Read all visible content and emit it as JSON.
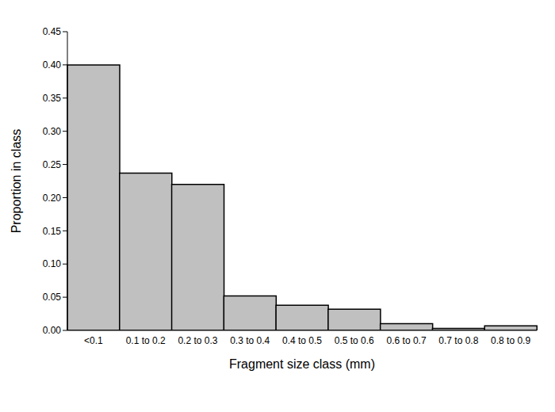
{
  "chart_data": {
    "type": "bar",
    "x_label": "Fragment size class (mm)",
    "y_label": "Proportion in class",
    "categories": [
      "<0.1",
      "0.1 to 0.2",
      "0.2 to 0.3",
      "0.3 to 0.4",
      "0.4 to 0.5",
      "0.5 to 0.6",
      "0.6 to 0.7",
      "0.7 to 0.8",
      "0.8 to 0.9"
    ],
    "values": [
      0.4,
      0.237,
      0.22,
      0.052,
      0.038,
      0.032,
      0.01,
      0.003,
      0.007
    ],
    "color": "#c0c0c0",
    "ylim": [
      0,
      0.45
    ],
    "yticks": [
      {
        "value": 0,
        "label": "0.00"
      },
      0.05,
      {
        "value": 0.1,
        "label": "0.10"
      },
      0.15,
      {
        "value": 0.2,
        "label": "0.20"
      },
      0.25,
      {
        "value": 0.3,
        "label": "0.30"
      },
      0.35,
      {
        "value": 0.4,
        "label": "0.40"
      },
      0.45
    ],
    "grid": false
  }
}
